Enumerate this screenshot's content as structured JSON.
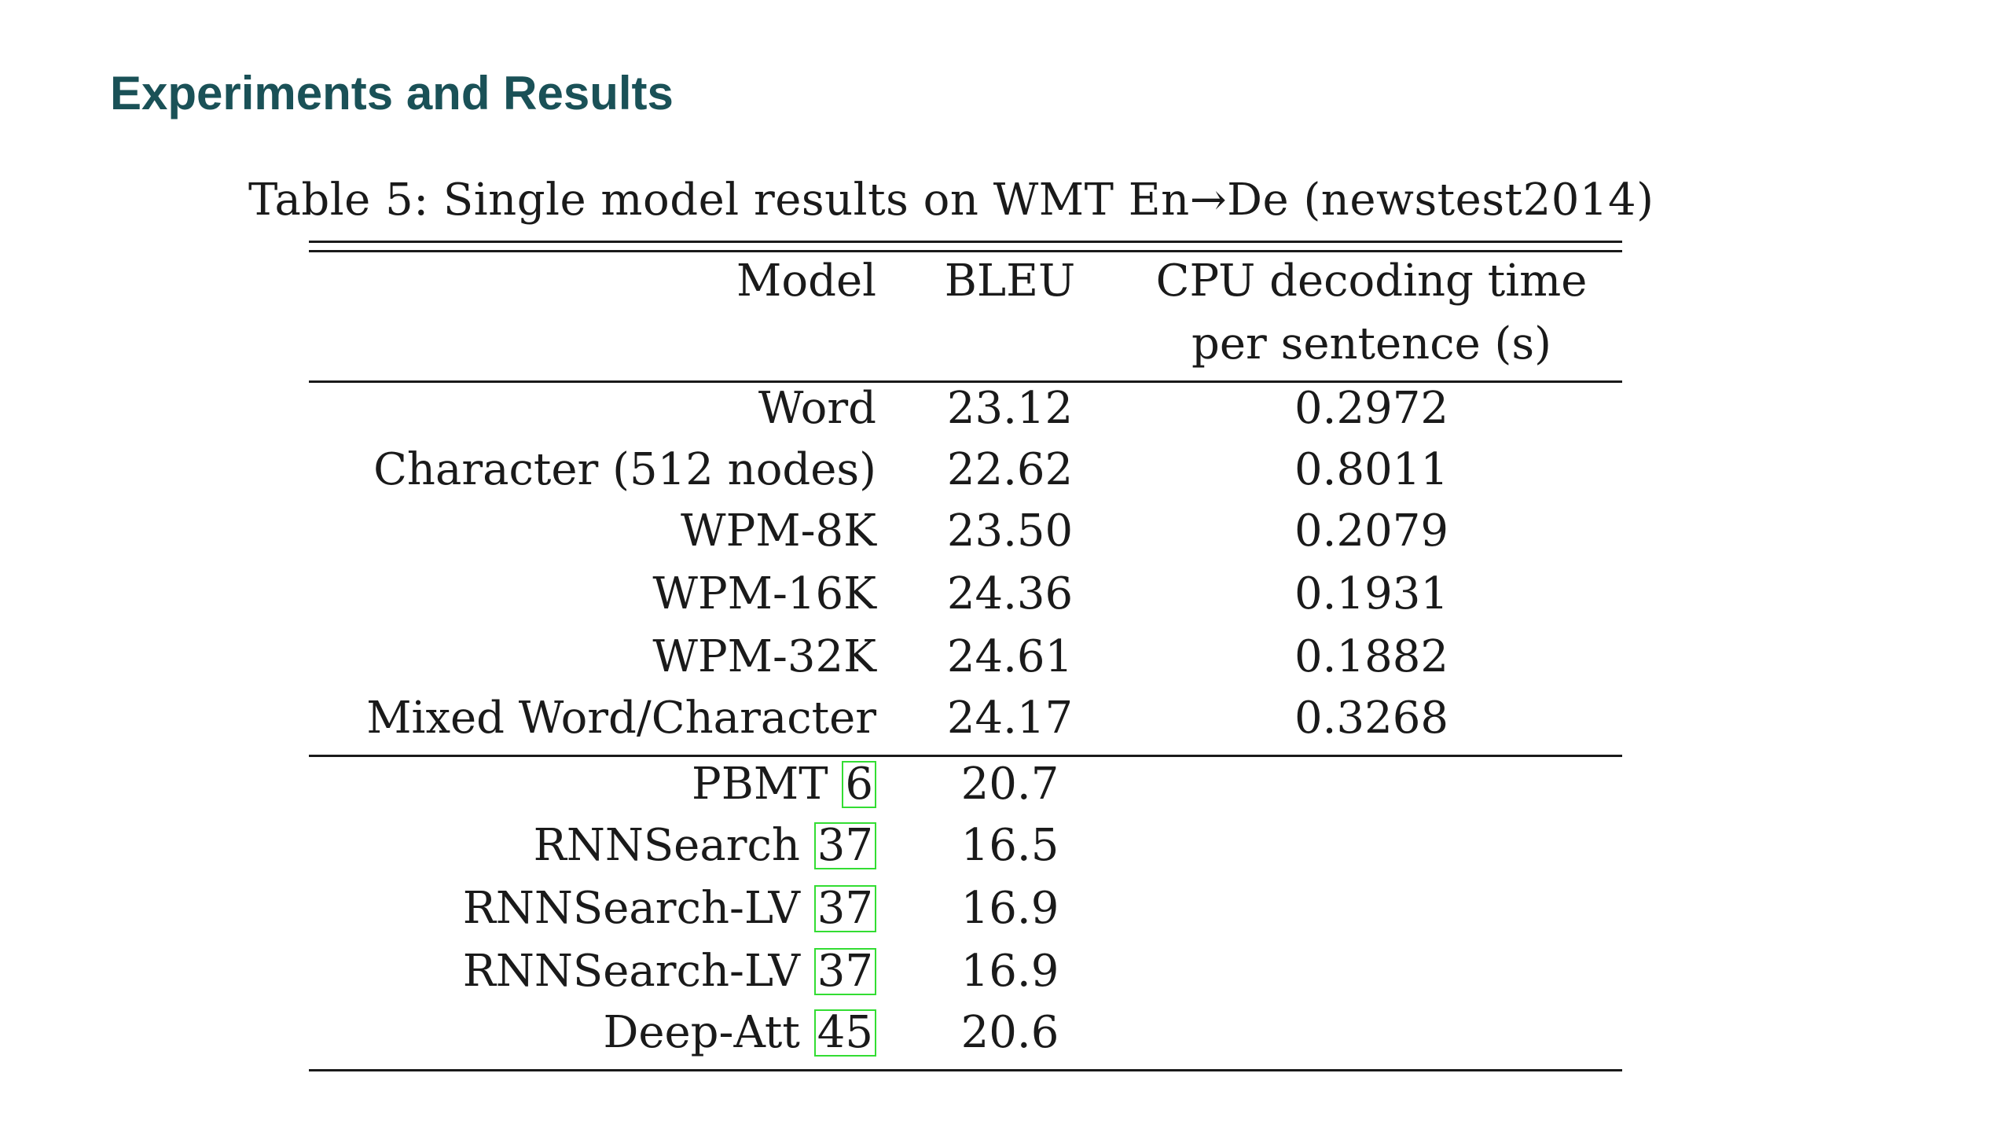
{
  "slide": {
    "title": "Experiments and Results"
  },
  "table": {
    "caption": "Table 5: Single model results on WMT En→De (newstest2014)",
    "headers": {
      "model": "Model",
      "bleu": "BLEU",
      "time_line1": "CPU decoding time",
      "time_line2": "per sentence (s)"
    },
    "group1": [
      {
        "model": "Word",
        "bleu": "23.12",
        "time": "0.2972"
      },
      {
        "model": "Character (512 nodes)",
        "bleu": "22.62",
        "time": "0.8011"
      },
      {
        "model": "WPM-8K",
        "bleu": "23.50",
        "time": "0.2079"
      },
      {
        "model": "WPM-16K",
        "bleu": "24.36",
        "time": "0.1931"
      },
      {
        "model": "WPM-32K",
        "bleu": "24.61",
        "time": "0.1882"
      },
      {
        "model": "Mixed Word/Character",
        "bleu": "24.17",
        "time": "0.3268"
      }
    ],
    "group2": [
      {
        "model": "PBMT",
        "cite": "6",
        "bleu": "20.7"
      },
      {
        "model": "RNNSearch",
        "cite": "37",
        "bleu": "16.5"
      },
      {
        "model": "RNNSearch-LV",
        "cite": "37",
        "bleu": "16.9"
      },
      {
        "model": "RNNSearch-LV",
        "cite": "37",
        "bleu": "16.9"
      },
      {
        "model": "Deep-Att",
        "cite": "45",
        "bleu": "20.6"
      }
    ],
    "colors": {
      "title": "#1a5157",
      "citation_box": "#33dd33",
      "text": "#1a1a1a"
    }
  }
}
